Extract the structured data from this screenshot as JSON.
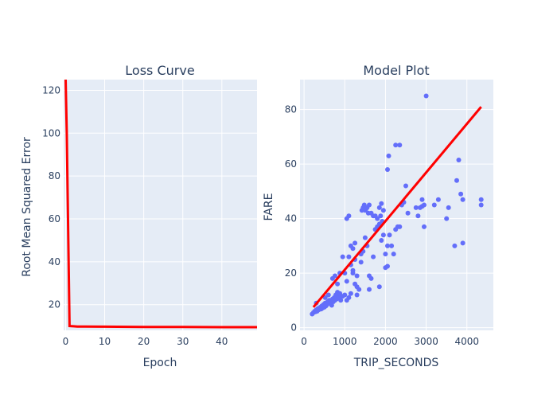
{
  "chart_data": [
    {
      "type": "line",
      "title": "Loss Curve",
      "xlabel": "Epoch",
      "ylabel": "Root Mean Squared Error",
      "xlim": [
        -0.5,
        49
      ],
      "ylim": [
        8,
        125
      ],
      "xticks": [
        0,
        10,
        20,
        30,
        40
      ],
      "yticks": [
        20,
        40,
        60,
        80,
        100,
        120
      ],
      "grid": true,
      "line_color": "#ff0000",
      "plot_bg": "#e5ecf6",
      "x": [
        0,
        0.3,
        1,
        2,
        3,
        5,
        10,
        20,
        30,
        40,
        49
      ],
      "y": [
        125,
        100,
        10,
        9.9,
        9.8,
        9.8,
        9.7,
        9.6,
        9.6,
        9.5,
        9.5
      ]
    },
    {
      "type": "scatter",
      "title": "Model Plot",
      "xlabel": "TRIP_SECONDS",
      "ylabel": "FARE",
      "xlim": [
        -100,
        4650
      ],
      "ylim": [
        -1,
        91
      ],
      "xticks": [
        0,
        1000,
        2000,
        3000,
        4000
      ],
      "yticks": [
        0,
        20,
        40,
        60,
        80
      ],
      "grid": true,
      "point_color": "#636efa",
      "plot_bg": "#e5ecf6",
      "points": [
        [
          200,
          5
        ],
        [
          230,
          5.5
        ],
        [
          260,
          6
        ],
        [
          280,
          5.8
        ],
        [
          300,
          6.5
        ],
        [
          320,
          6
        ],
        [
          340,
          7
        ],
        [
          360,
          6.5
        ],
        [
          380,
          7
        ],
        [
          400,
          7.5
        ],
        [
          420,
          6.8
        ],
        [
          440,
          8
        ],
        [
          460,
          7.2
        ],
        [
          480,
          8.5
        ],
        [
          500,
          7.5
        ],
        [
          520,
          9
        ],
        [
          540,
          8
        ],
        [
          560,
          8.5
        ],
        [
          580,
          9.5
        ],
        [
          600,
          8.8
        ],
        [
          620,
          10
        ],
        [
          640,
          9
        ],
        [
          660,
          9.8
        ],
        [
          680,
          8.2
        ],
        [
          700,
          10.5
        ],
        [
          720,
          9.5
        ],
        [
          740,
          11
        ],
        [
          760,
          10
        ],
        [
          780,
          12
        ],
        [
          800,
          10.5
        ],
        [
          820,
          13
        ],
        [
          840,
          11.5
        ],
        [
          860,
          11
        ],
        [
          880,
          12.5
        ],
        [
          900,
          10
        ],
        [
          950,
          11.5
        ],
        [
          1000,
          12
        ],
        [
          1050,
          10
        ],
        [
          1100,
          11
        ],
        [
          1150,
          12.5
        ],
        [
          300,
          9
        ],
        [
          520,
          11
        ],
        [
          600,
          12
        ],
        [
          700,
          18
        ],
        [
          760,
          19
        ],
        [
          820,
          16
        ],
        [
          880,
          20
        ],
        [
          950,
          26
        ],
        [
          1000,
          20
        ],
        [
          1050,
          17
        ],
        [
          1100,
          26
        ],
        [
          1150,
          23
        ],
        [
          1200,
          21
        ],
        [
          1250,
          25
        ],
        [
          1300,
          19
        ],
        [
          1350,
          14
        ],
        [
          1400,
          24
        ],
        [
          1450,
          28
        ],
        [
          1500,
          33
        ],
        [
          1550,
          30
        ],
        [
          1600,
          19
        ],
        [
          1650,
          18
        ],
        [
          1700,
          26
        ],
        [
          1750,
          36
        ],
        [
          1800,
          37
        ],
        [
          1850,
          38
        ],
        [
          1900,
          32
        ],
        [
          1950,
          34
        ],
        [
          2000,
          27
        ],
        [
          2050,
          30
        ],
        [
          2100,
          34
        ],
        [
          2150,
          30
        ],
        [
          2200,
          27
        ],
        [
          2250,
          36
        ],
        [
          2300,
          37
        ],
        [
          2350,
          37
        ],
        [
          2400,
          45
        ],
        [
          2450,
          46
        ],
        [
          2500,
          52
        ],
        [
          2550,
          42
        ],
        [
          1050,
          40
        ],
        [
          1100,
          41
        ],
        [
          1200,
          29
        ],
        [
          1250,
          31
        ],
        [
          1300,
          15
        ],
        [
          1420,
          43
        ],
        [
          1450,
          44
        ],
        [
          1480,
          45
        ],
        [
          1500,
          43
        ],
        [
          1520,
          43.5
        ],
        [
          1550,
          44
        ],
        [
          1580,
          42
        ],
        [
          1600,
          45
        ],
        [
          1650,
          42
        ],
        [
          1700,
          41
        ],
        [
          1750,
          41
        ],
        [
          1800,
          40
        ],
        [
          1850,
          44
        ],
        [
          1900,
          45.5
        ],
        [
          1950,
          43
        ],
        [
          1880,
          41
        ],
        [
          1920,
          39
        ],
        [
          2050,
          58
        ],
        [
          2080,
          63
        ],
        [
          2250,
          67
        ],
        [
          2350,
          67
        ],
        [
          2750,
          44
        ],
        [
          2800,
          41
        ],
        [
          2850,
          44
        ],
        [
          2900,
          44.5
        ],
        [
          2950,
          45
        ],
        [
          2950,
          37
        ],
        [
          2900,
          47
        ],
        [
          3000,
          85
        ],
        [
          3200,
          45
        ],
        [
          3300,
          47
        ],
        [
          3550,
          44
        ],
        [
          3500,
          40
        ],
        [
          3700,
          30
        ],
        [
          3750,
          54
        ],
        [
          3800,
          61.5
        ],
        [
          3850,
          49
        ],
        [
          3900,
          47
        ],
        [
          3900,
          31
        ],
        [
          4350,
          45
        ],
        [
          4350,
          47
        ],
        [
          1600,
          14
        ],
        [
          1850,
          15
        ],
        [
          2000,
          22
        ],
        [
          2050,
          22.5
        ],
        [
          1250,
          16
        ],
        [
          1300,
          12
        ],
        [
          1400,
          27
        ],
        [
          1150,
          30
        ],
        [
          1200,
          20
        ]
      ],
      "fit_line": {
        "color": "#ff0000",
        "points": [
          [
            230,
            7.5
          ],
          [
            4350,
            81
          ]
        ]
      }
    }
  ]
}
